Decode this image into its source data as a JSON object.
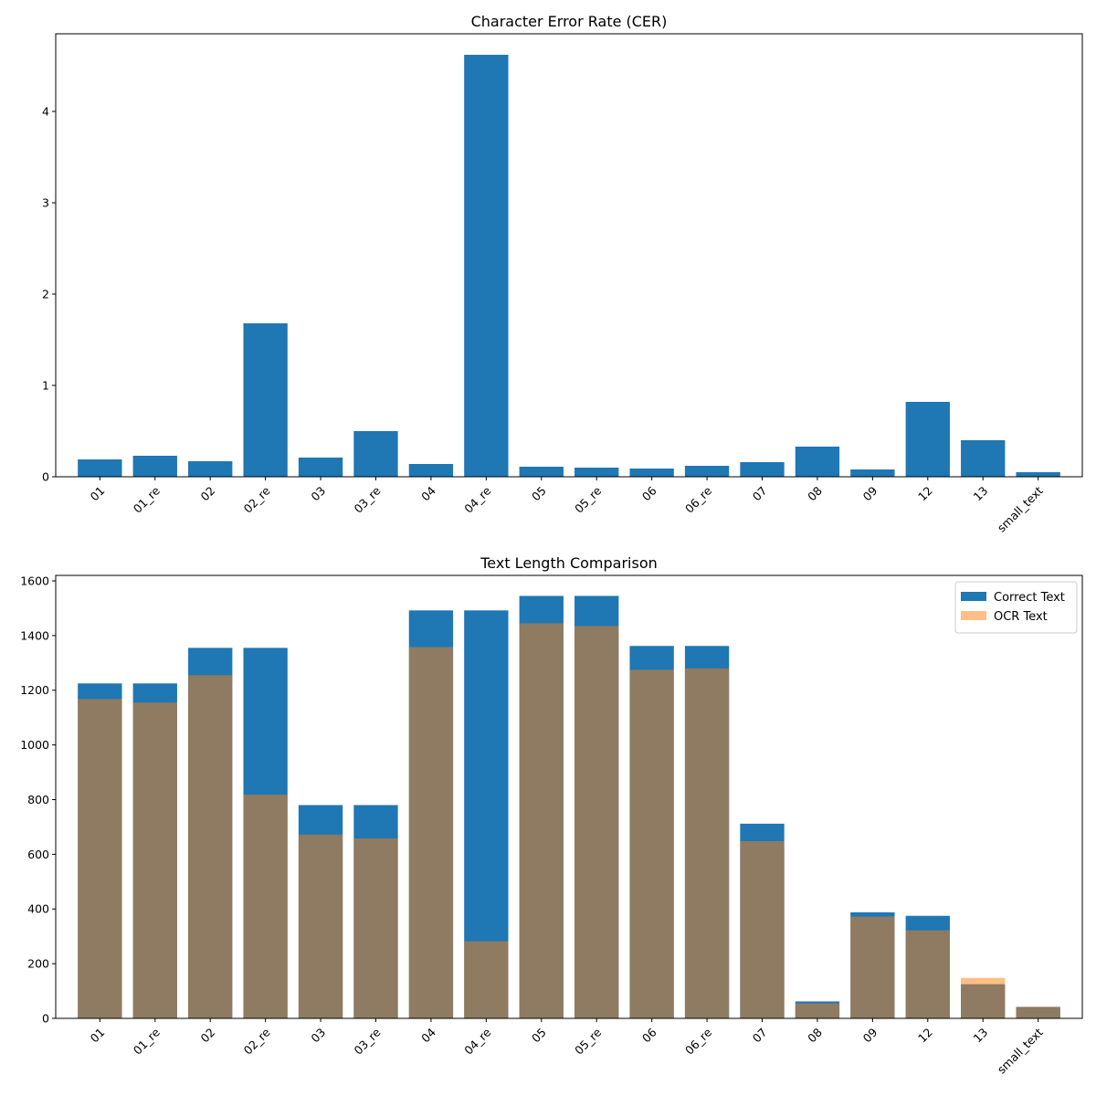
{
  "chart_data": [
    {
      "type": "bar",
      "title": "Character Error Rate (CER)",
      "xlabel": "",
      "ylabel": "",
      "categories": [
        "01",
        "01_re",
        "02",
        "02_re",
        "03",
        "03_re",
        "04",
        "04_re",
        "05",
        "05_re",
        "06",
        "06_re",
        "07",
        "08",
        "09",
        "12",
        "13",
        "small_text"
      ],
      "ylim": [
        0,
        4.85
      ],
      "yticks": [
        0,
        1,
        2,
        3,
        4
      ],
      "grid": false,
      "series": [
        {
          "values": [
            0.19,
            0.23,
            0.17,
            1.68,
            0.21,
            0.5,
            0.14,
            4.62,
            0.11,
            0.1,
            0.09,
            0.12,
            0.16,
            0.33,
            0.08,
            0.82,
            0.4,
            0.05
          ],
          "color": "#1f77b4"
        }
      ]
    },
    {
      "type": "bar",
      "title": "Text Length Comparison",
      "xlabel": "",
      "ylabel": "",
      "categories": [
        "01",
        "01_re",
        "02",
        "02_re",
        "03",
        "03_re",
        "04",
        "04_re",
        "05",
        "05_re",
        "06",
        "06_re",
        "07",
        "08",
        "09",
        "12",
        "13",
        "small_text"
      ],
      "ylim": [
        0,
        1620
      ],
      "yticks": [
        0,
        200,
        400,
        600,
        800,
        1000,
        1200,
        1400,
        1600
      ],
      "grid": false,
      "legend": "top-right",
      "series": [
        {
          "name": "Correct Text",
          "values": [
            1225,
            1225,
            1355,
            1355,
            780,
            780,
            1492,
            1492,
            1545,
            1545,
            1362,
            1362,
            712,
            62,
            388,
            375,
            125,
            42
          ],
          "color": "#1f77b4"
        },
        {
          "name": "OCR Text",
          "values": [
            1168,
            1155,
            1255,
            818,
            672,
            658,
            1358,
            282,
            1445,
            1435,
            1275,
            1280,
            648,
            55,
            372,
            322,
            148,
            42
          ],
          "color": "#ff7f0e",
          "opacity": 0.5
        }
      ]
    }
  ]
}
